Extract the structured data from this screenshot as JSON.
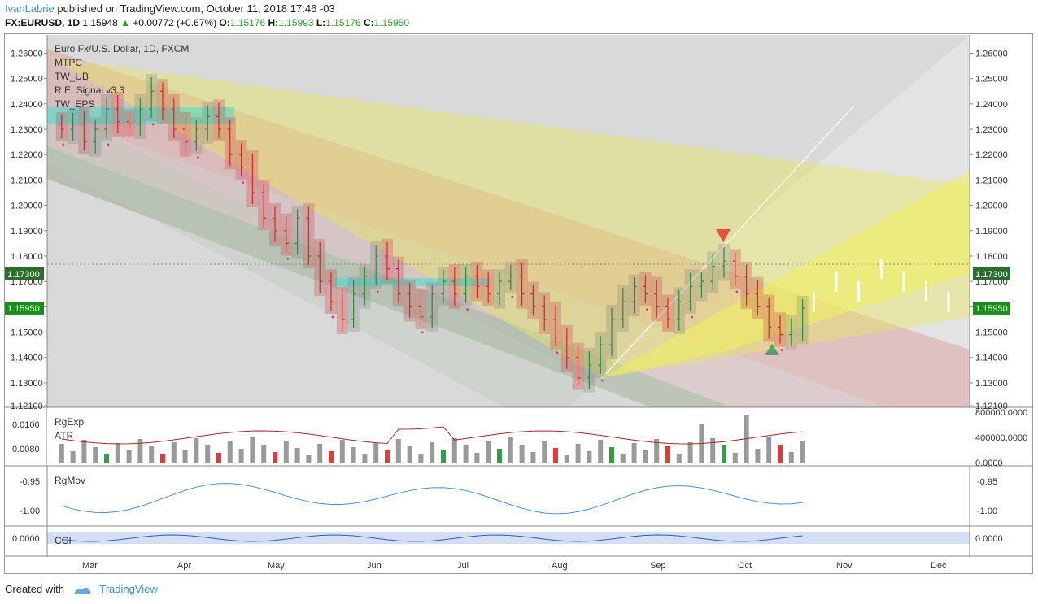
{
  "header": {
    "author": "IvanLabrie",
    "published": "published on TradingView.com, October 11, 2018 17:46 -03",
    "symbol": "FX:EURUSD, 1D",
    "last": "1.15948",
    "change": "+0.00772 (+0.67%)",
    "o_label": "O:",
    "o": "1.15176",
    "h_label": "H:",
    "h": "1.15993",
    "l_label": "L:",
    "l": "1.15176",
    "c_label": "C:",
    "c": "1.15950"
  },
  "legend": [
    "Euro Fx/U.S. Dollar, 1D, FXCM",
    "MTPC",
    "TW_UB",
    "R.E. Signal v3.3",
    "TW_EPS"
  ],
  "footer": {
    "created": "Created with",
    "brand": "TradingView"
  },
  "colors": {
    "up": "#2e8b3a",
    "down": "#d62728",
    "author": "#3d8fd6",
    "pane": "#dcdcdc",
    "price_tag": "#1a8c1a"
  },
  "chart_data": [
    {
      "type": "candlestick",
      "title": "Euro Fx/U.S. Dollar, 1D, FXCM",
      "x_ticks": [
        "Mar",
        "Apr",
        "May",
        "Jun",
        "Jul",
        "Aug",
        "Sep",
        "Oct",
        "Nov",
        "Dec"
      ],
      "y_ticks": [
        "1.26000",
        "1.25000",
        "1.24000",
        "1.23000",
        "1.22000",
        "1.21000",
        "1.20000",
        "1.19000",
        "1.18000",
        "1.17000",
        "1.16000",
        "1.15000",
        "1.14000",
        "1.13000",
        "1.12100"
      ],
      "ylim": [
        1.121,
        1.264
      ],
      "price_tags": [
        {
          "label": "1.17300",
          "value": 1.173,
          "style": "dark"
        },
        {
          "label": "1.15950",
          "value": 1.1595,
          "style": "green"
        }
      ],
      "close_path": [
        [
          1,
          1.23
        ],
        [
          2,
          1.232
        ],
        [
          3,
          1.225
        ],
        [
          4,
          1.23
        ],
        [
          5,
          1.238
        ],
        [
          6,
          1.233
        ],
        [
          7,
          1.232
        ],
        [
          8,
          1.238
        ],
        [
          9,
          1.245
        ],
        [
          10,
          1.238
        ],
        [
          11,
          1.23
        ],
        [
          12,
          1.225
        ],
        [
          13,
          1.23
        ],
        [
          14,
          1.235
        ],
        [
          15,
          1.23
        ],
        [
          16,
          1.22
        ],
        [
          17,
          1.215
        ],
        [
          18,
          1.205
        ],
        [
          19,
          1.195
        ],
        [
          20,
          1.19
        ],
        [
          21,
          1.185
        ],
        [
          22,
          1.195
        ],
        [
          23,
          1.18
        ],
        [
          24,
          1.17
        ],
        [
          25,
          1.162
        ],
        [
          26,
          1.155
        ],
        [
          27,
          1.165
        ],
        [
          28,
          1.172
        ],
        [
          29,
          1.18
        ],
        [
          30,
          1.175
        ],
        [
          31,
          1.165
        ],
        [
          32,
          1.16
        ],
        [
          33,
          1.156
        ],
        [
          34,
          1.165
        ],
        [
          35,
          1.17
        ],
        [
          36,
          1.165
        ],
        [
          37,
          1.172
        ],
        [
          38,
          1.168
        ],
        [
          39,
          1.165
        ],
        [
          40,
          1.17
        ],
        [
          41,
          1.172
        ],
        [
          42,
          1.165
        ],
        [
          43,
          1.16
        ],
        [
          44,
          1.155
        ],
        [
          45,
          1.148
        ],
        [
          46,
          1.14
        ],
        [
          47,
          1.132
        ],
        [
          48,
          1.137
        ],
        [
          49,
          1.145
        ],
        [
          50,
          1.155
        ],
        [
          51,
          1.162
        ],
        [
          52,
          1.168
        ],
        [
          53,
          1.165
        ],
        [
          54,
          1.16
        ],
        [
          55,
          1.155
        ],
        [
          56,
          1.162
        ],
        [
          57,
          1.168
        ],
        [
          58,
          1.17
        ],
        [
          59,
          1.176
        ],
        [
          60,
          1.178
        ],
        [
          61,
          1.172
        ],
        [
          62,
          1.165
        ],
        [
          63,
          1.16
        ],
        [
          64,
          1.152
        ],
        [
          65,
          1.149
        ],
        [
          66,
          1.15
        ],
        [
          67,
          1.1595
        ]
      ],
      "projection_path": [
        [
          68,
          1.162
        ],
        [
          70,
          1.17
        ],
        [
          72,
          1.166
        ],
        [
          74,
          1.175
        ],
        [
          76,
          1.17
        ],
        [
          78,
          1.166
        ],
        [
          80,
          1.162
        ],
        [
          82,
          1.168
        ],
        [
          84,
          1.172
        ],
        [
          86,
          1.18
        ],
        [
          88,
          1.19
        ],
        [
          90,
          1.185
        ]
      ]
    },
    {
      "type": "bar",
      "title": "RgExp / ATR",
      "legend": [
        "RgExp",
        "ATR"
      ],
      "y_ticks_left": [
        "0.0100",
        "0.0080"
      ],
      "y_ticks_right": [
        "800000.0000",
        "400000.0000",
        "0.0000"
      ]
    },
    {
      "type": "line",
      "title": "RgMov",
      "legend": [
        "RgMov"
      ],
      "y_ticks_left": [
        "-0.95",
        "-1.00"
      ],
      "y_ticks_right": [
        "-0.95",
        "-1.00"
      ]
    },
    {
      "type": "area",
      "title": "CCI",
      "legend": [
        "CCI"
      ],
      "y_ticks_left": [
        "0.0000"
      ],
      "y_ticks_right": [
        "0.0000"
      ]
    }
  ]
}
